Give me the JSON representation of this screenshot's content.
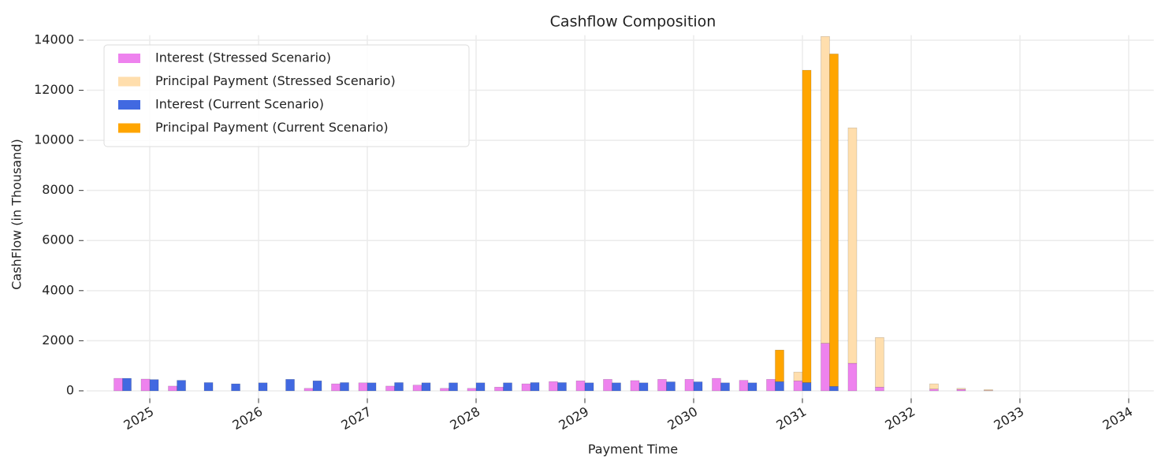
{
  "chart_data": {
    "type": "bar",
    "title": "Cashflow Composition",
    "x_label": "Payment Time",
    "y_label": "CashFlow (in Thousand)",
    "x": [
      2024.75,
      2025.0,
      2025.25,
      2025.5,
      2025.75,
      2026.0,
      2026.25,
      2026.5,
      2026.75,
      2027.0,
      2027.25,
      2027.5,
      2027.75,
      2028.0,
      2028.25,
      2028.5,
      2028.75,
      2029.0,
      2029.25,
      2029.5,
      2029.75,
      2030.0,
      2030.25,
      2030.5,
      2030.75,
      2031.0,
      2031.25,
      2031.5,
      2031.75,
      2032.0,
      2032.25,
      2032.5,
      2032.75
    ],
    "series": [
      {
        "name": "Interest (Stressed Scenario)",
        "color": "#ee82ee",
        "values": [
          500,
          470,
          190,
          0,
          0,
          0,
          0,
          100,
          280,
          320,
          190,
          230,
          100,
          100,
          150,
          280,
          370,
          400,
          460,
          410,
          460,
          460,
          500,
          420,
          460,
          400,
          1900,
          1100,
          150,
          0,
          70,
          60,
          10
        ]
      },
      {
        "name": "Principal Payment (Stressed Scenario)",
        "color": "#ffdead",
        "values": [
          0,
          0,
          0,
          0,
          0,
          0,
          0,
          0,
          0,
          0,
          0,
          0,
          0,
          0,
          0,
          0,
          0,
          0,
          0,
          0,
          0,
          0,
          0,
          0,
          0,
          350,
          12250,
          9400,
          1980,
          0,
          210,
          40,
          40
        ]
      },
      {
        "name": "Interest (Current Scenario)",
        "color": "#4169e1",
        "values": [
          500,
          450,
          420,
          330,
          280,
          320,
          460,
          400,
          330,
          320,
          330,
          320,
          320,
          320,
          320,
          330,
          330,
          320,
          320,
          320,
          360,
          360,
          320,
          320,
          370,
          330,
          180,
          0,
          0,
          0,
          0,
          0,
          0
        ]
      },
      {
        "name": "Principal Payment (Current Scenario)",
        "color": "#ffa500",
        "values": [
          0,
          0,
          0,
          0,
          0,
          0,
          0,
          0,
          0,
          0,
          0,
          0,
          0,
          0,
          0,
          0,
          0,
          0,
          0,
          0,
          0,
          0,
          0,
          0,
          1260,
          12470,
          13270,
          0,
          0,
          0,
          0,
          0,
          0
        ]
      }
    ],
    "xlim": [
      2024.42,
      2034.23
    ],
    "xticks": [
      2025,
      2026,
      2027,
      2028,
      2029,
      2030,
      2031,
      2032,
      2033,
      2034
    ],
    "ylim": [
      -300,
      14200
    ],
    "yticks": [
      0,
      2000,
      4000,
      6000,
      8000,
      10000,
      12000,
      14000
    ],
    "grid": true,
    "legend": "upper left"
  }
}
